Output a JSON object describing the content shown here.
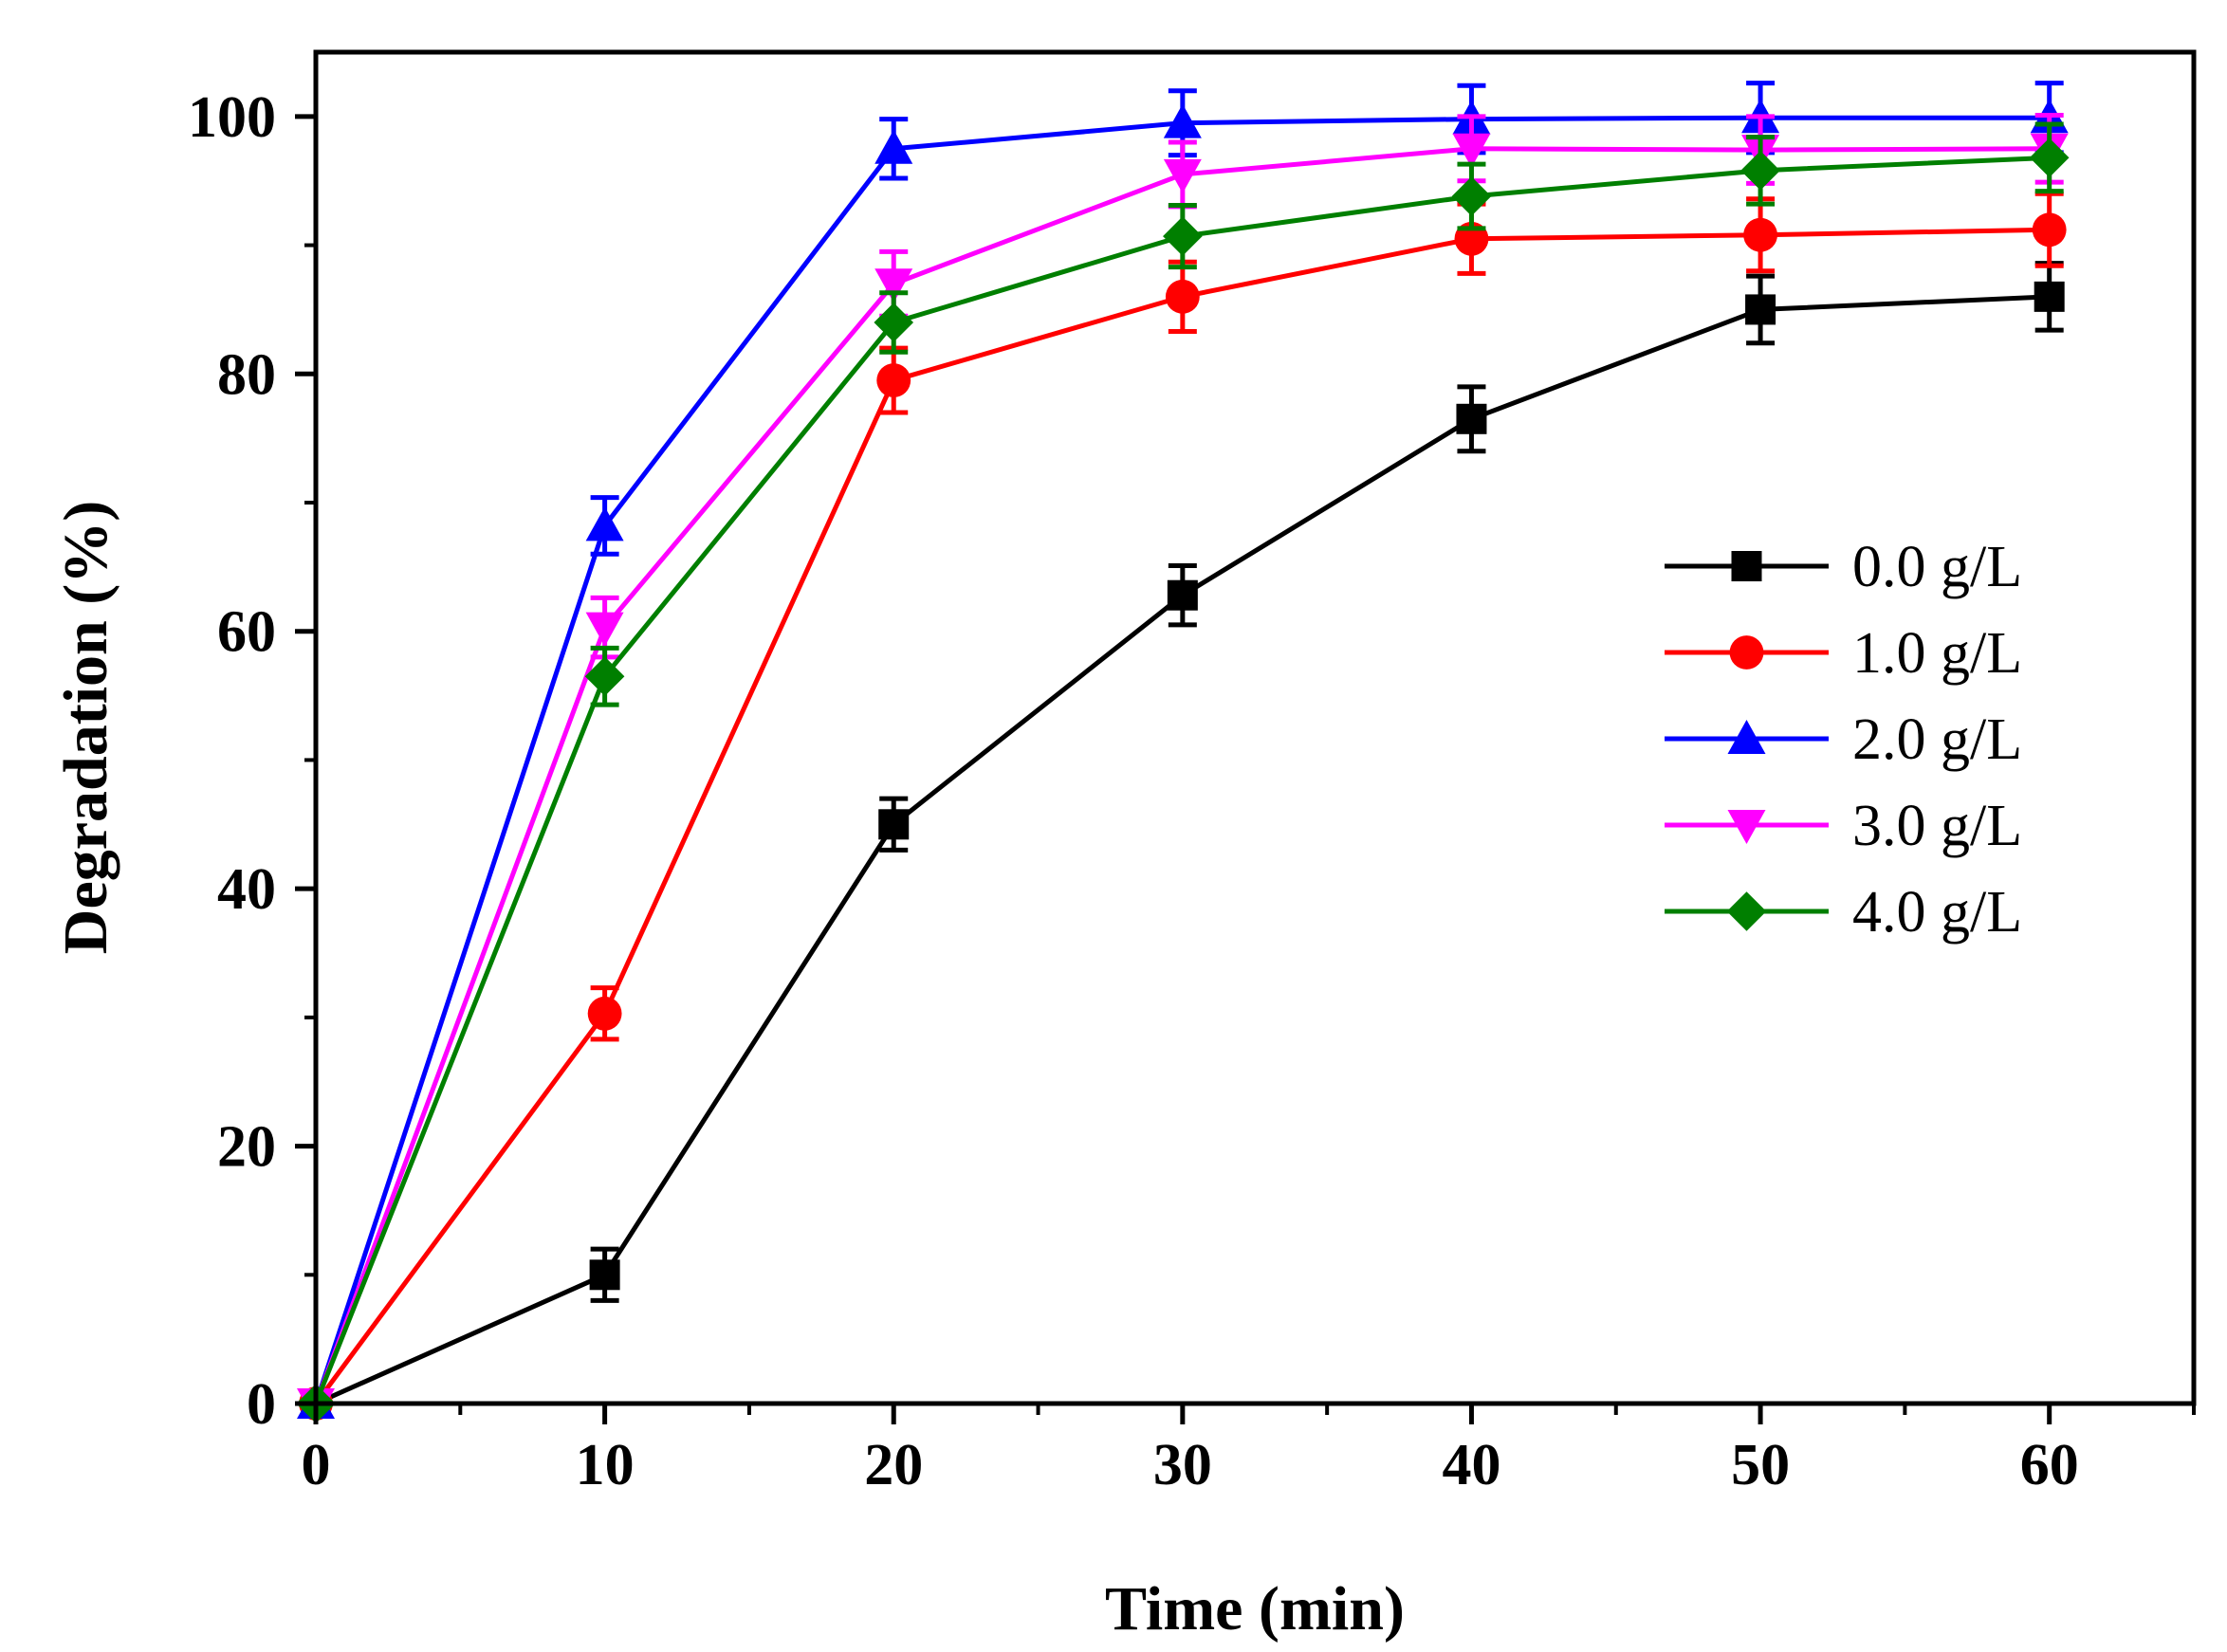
{
  "chart_data": {
    "type": "line",
    "title": "",
    "xlabel": "Time (min)",
    "ylabel": "Degradation (%)",
    "xlim": [
      0,
      65
    ],
    "ylim": [
      0,
      105
    ],
    "x_ticks": [
      0,
      10,
      20,
      30,
      40,
      50,
      60
    ],
    "x_tick_labels": [
      "0",
      "10",
      "20",
      "30",
      "40",
      "50",
      "60"
    ],
    "x_minor_ticks": [
      5,
      15,
      25,
      35,
      45,
      55,
      65
    ],
    "y_ticks": [
      0,
      20,
      40,
      60,
      80,
      100
    ],
    "y_tick_labels": [
      "0",
      "20",
      "40",
      "60",
      "80",
      "100"
    ],
    "y_minor_ticks": [
      10,
      30,
      50,
      70,
      90
    ],
    "grid": false,
    "legend_position": "right",
    "x": [
      0,
      10,
      20,
      30,
      40,
      50,
      60
    ],
    "series": [
      {
        "name": "0.0 g/L",
        "color": "#000000",
        "marker": "square",
        "values": [
          0,
          10,
          45,
          62.8,
          76.5,
          85,
          86
        ],
        "errors": [
          0,
          2,
          2,
          2.3,
          2.5,
          2.6,
          2.6
        ]
      },
      {
        "name": "1.0 g/L",
        "color": "#ff0000",
        "marker": "circle",
        "values": [
          0,
          30.3,
          79.5,
          86,
          90.5,
          90.8,
          91.2
        ],
        "errors": [
          0,
          2,
          2.5,
          2.7,
          2.7,
          2.8,
          2.8
        ]
      },
      {
        "name": "2.0 g/L",
        "color": "#0000ff",
        "marker": "triangle-up",
        "values": [
          0,
          68.2,
          97.5,
          99.5,
          99.8,
          99.9,
          99.9
        ],
        "errors": [
          0,
          2.2,
          2.3,
          2.5,
          2.6,
          2.7,
          2.7
        ]
      },
      {
        "name": "3.0 g/L",
        "color": "#ff00ff",
        "marker": "triangle-down",
        "values": [
          0,
          60.3,
          87,
          95.5,
          97.5,
          97.4,
          97.5
        ],
        "errors": [
          0,
          2.3,
          2.5,
          2.5,
          2.5,
          2.6,
          2.6
        ]
      },
      {
        "name": "4.0 g/L",
        "color": "#007f00",
        "marker": "diamond",
        "values": [
          0,
          56.5,
          84,
          90.7,
          93.8,
          95.8,
          96.8
        ],
        "errors": [
          0,
          2.2,
          2.3,
          2.4,
          2.5,
          2.6,
          2.6
        ]
      }
    ]
  }
}
